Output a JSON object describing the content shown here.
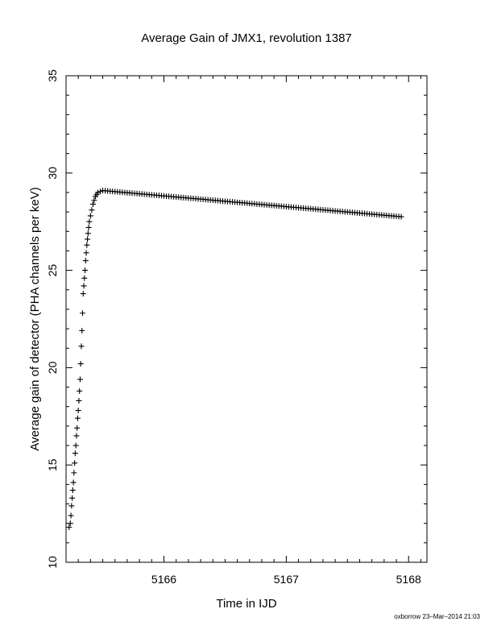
{
  "chart_data": {
    "type": "scatter",
    "title": "Average Gain of JMX1, revolution 1387",
    "xlabel": "Time in IJD",
    "ylabel": "Average gain of detector (PHA channels per keV)",
    "xlim": [
      5165.2,
      5168.15
    ],
    "ylim": [
      10,
      35
    ],
    "xticks": [
      5166,
      5167,
      5168
    ],
    "yticks": [
      10,
      15,
      20,
      25,
      30,
      35
    ],
    "grid": false,
    "marker": "+",
    "series": [
      {
        "values_ramp": [
          [
            5165.225,
            11.8
          ],
          [
            5165.235,
            12.0
          ],
          [
            5165.24,
            12.4
          ],
          [
            5165.245,
            12.9
          ],
          [
            5165.25,
            13.3
          ],
          [
            5165.255,
            13.7
          ],
          [
            5165.26,
            14.1
          ],
          [
            5165.265,
            14.6
          ],
          [
            5165.27,
            15.1
          ],
          [
            5165.275,
            15.6
          ],
          [
            5165.28,
            16.0
          ],
          [
            5165.285,
            16.5
          ],
          [
            5165.29,
            16.9
          ],
          [
            5165.295,
            17.4
          ],
          [
            5165.3,
            17.8
          ],
          [
            5165.305,
            18.3
          ],
          [
            5165.31,
            18.8
          ],
          [
            5165.315,
            19.4
          ],
          [
            5165.32,
            20.2
          ],
          [
            5165.325,
            21.1
          ],
          [
            5165.33,
            21.9
          ],
          [
            5165.335,
            22.8
          ],
          [
            5165.34,
            23.8
          ],
          [
            5165.345,
            24.2
          ],
          [
            5165.35,
            24.6
          ],
          [
            5165.355,
            25.0
          ],
          [
            5165.36,
            25.5
          ],
          [
            5165.365,
            25.9
          ],
          [
            5165.37,
            26.3
          ],
          [
            5165.375,
            26.6
          ],
          [
            5165.38,
            26.9
          ],
          [
            5165.385,
            27.2
          ],
          [
            5165.39,
            27.5
          ],
          [
            5165.4,
            27.8
          ],
          [
            5165.41,
            28.1
          ],
          [
            5165.42,
            28.4
          ],
          [
            5165.43,
            28.6
          ],
          [
            5165.44,
            28.8
          ],
          [
            5165.45,
            28.9
          ],
          [
            5165.46,
            29.0
          ],
          [
            5165.48,
            29.05
          ],
          [
            5165.5,
            29.1
          ]
        ],
        "values_decline": {
          "x_start": 5165.5,
          "y_start": 29.1,
          "x_end": 5167.95,
          "y_end": 27.75,
          "step": 0.02
        }
      }
    ]
  },
  "footer": "oxborrow 23–Mar–2014 21:03"
}
